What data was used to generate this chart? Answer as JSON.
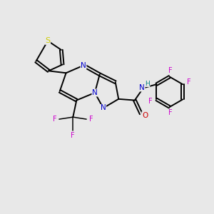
{
  "background_color": "#e8e8e8",
  "bond_color": "#000000",
  "N_color": "#0000cc",
  "O_color": "#cc0000",
  "S_color": "#cccc00",
  "F_color": "#cc00cc",
  "H_color": "#008080",
  "lw": 1.4,
  "lw_thin": 1.1,
  "fs": 7.5,
  "figsize": [
    3.0,
    3.0
  ],
  "dpi": 100,
  "xlim": [
    0,
    10
  ],
  "ylim": [
    0,
    10
  ]
}
